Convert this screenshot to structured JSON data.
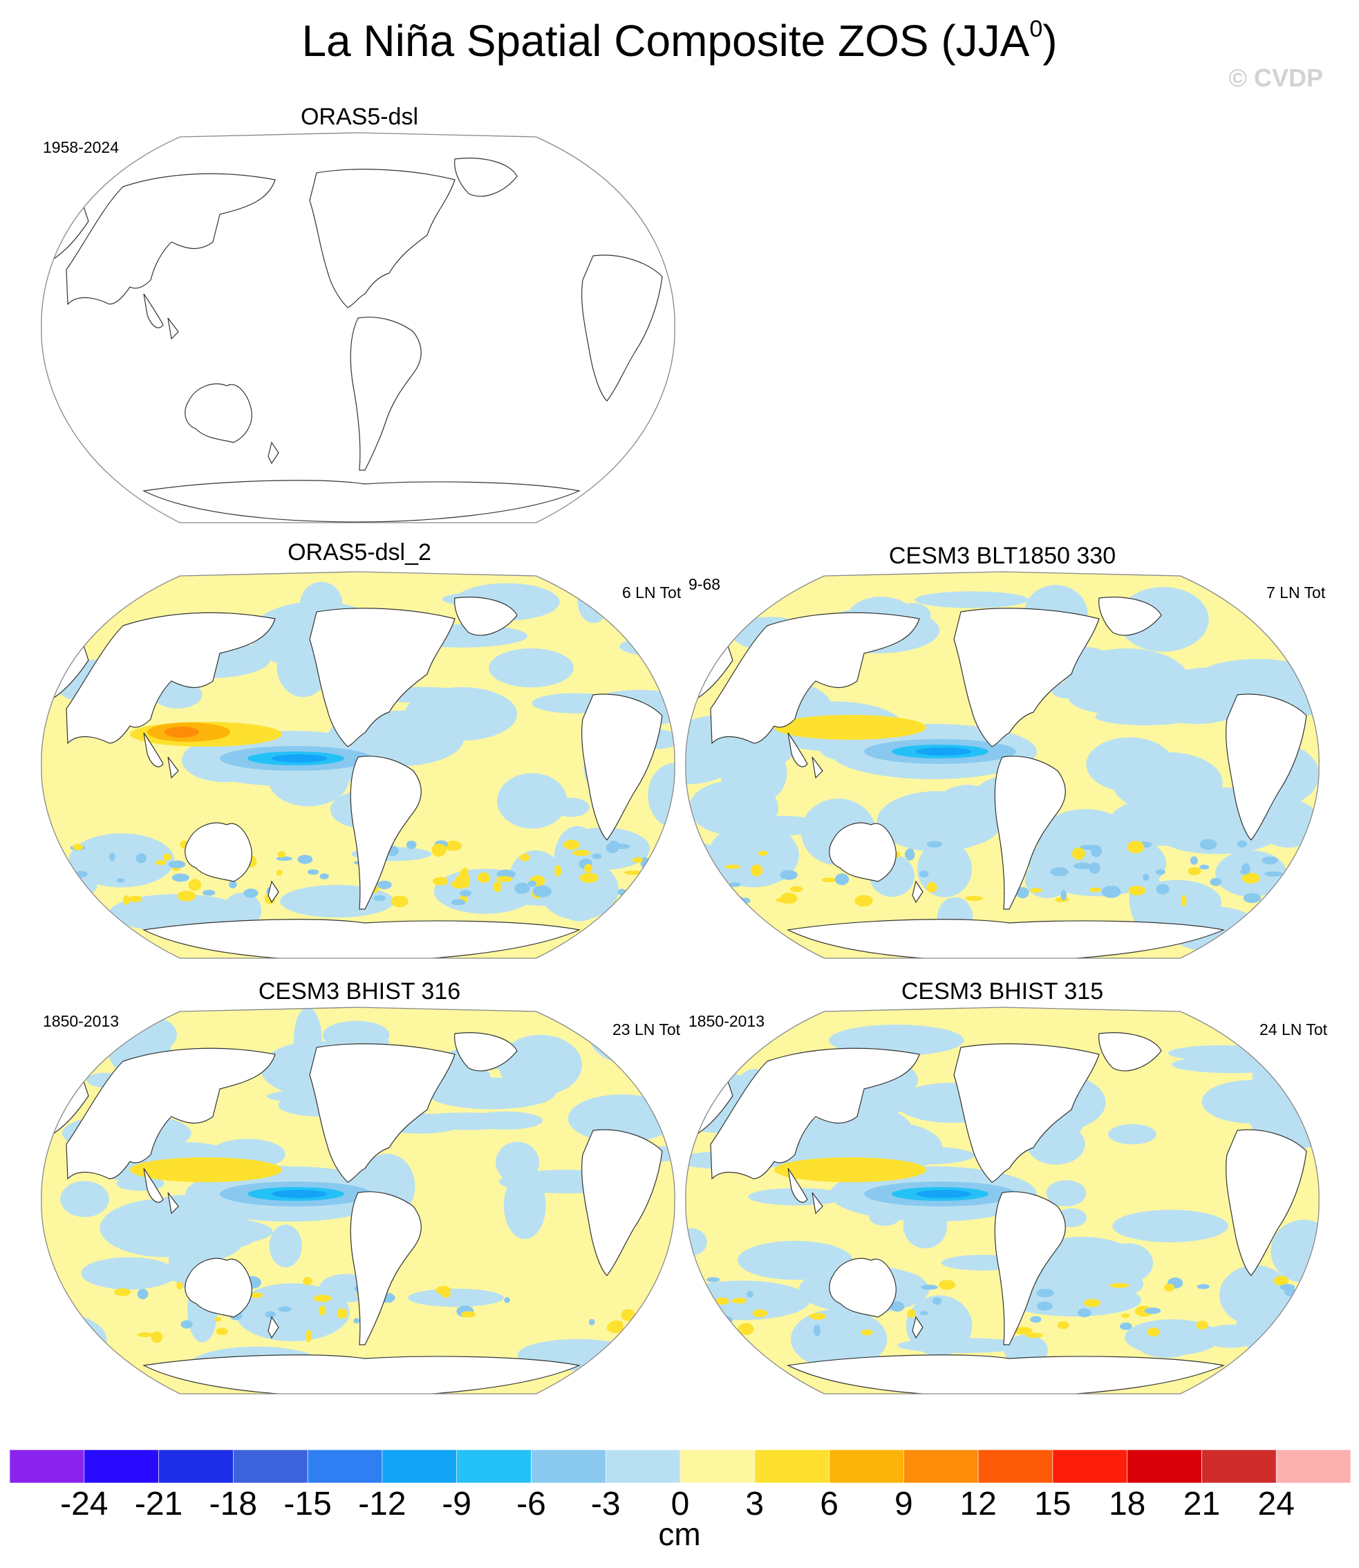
{
  "title": "La Niña Spatial Composite ZOS (JJA",
  "title_sup": "0",
  "title_close": ")",
  "watermark": "© CVDP",
  "panels": [
    {
      "id": "p1",
      "title": "ORAS5-dsl",
      "left_label": "1958-2024",
      "right_label": "",
      "has_data": false
    },
    {
      "id": "p2",
      "title": "ORAS5-dsl_2",
      "left_label": "",
      "right_label": "6 LN Tot",
      "has_data": true
    },
    {
      "id": "p3",
      "title": "CESM3 BLT1850 330",
      "left_label": "9-68",
      "right_label": "7 LN Tot",
      "has_data": true
    },
    {
      "id": "p4",
      "title": "CESM3 BHIST 316",
      "left_label": "1850-2013",
      "right_label": "23 LN Tot",
      "has_data": true
    },
    {
      "id": "p5",
      "title": "CESM3 BHIST 315",
      "left_label": "1850-2013",
      "right_label": "24 LN Tot",
      "has_data": true
    }
  ],
  "chart_data": {
    "type": "heatmap",
    "projection": "robinson",
    "variable": "ZOS",
    "season": "JJA",
    "units": "cm",
    "colorbar": {
      "levels": [
        -24,
        -21,
        -18,
        -15,
        -12,
        -9,
        -6,
        -3,
        0,
        3,
        6,
        9,
        12,
        15,
        18,
        21,
        24
      ],
      "colors": [
        "#8a23ee",
        "#2a0bff",
        "#1f2ee8",
        "#3c63dc",
        "#2f7ff2",
        "#14a4f7",
        "#24c1f6",
        "#89c9ef",
        "#b9e0f2",
        "#fdf7a0",
        "#fde12e",
        "#fdb40a",
        "#fd8c08",
        "#fd5a08",
        "#ff1e0a",
        "#d9000a",
        "#d02c2c",
        "#fdb0b0"
      ]
    },
    "panels_summary": [
      {
        "panel": "ORAS5-dsl",
        "min_cm": 0,
        "max_cm": 0,
        "note": "no data drawn"
      },
      {
        "panel": "ORAS5-dsl_2",
        "eq_pacific_min_cm": -9,
        "w_pacific_max_cm": 12
      },
      {
        "panel": "CESM3 BLT1850 330",
        "eq_pacific_min_cm": -9,
        "w_pacific_max_cm": 6
      },
      {
        "panel": "CESM3 BHIST 316",
        "eq_pacific_min_cm": -9,
        "w_pacific_max_cm": 6
      },
      {
        "panel": "CESM3 BHIST 315",
        "eq_pacific_min_cm": -9,
        "w_pacific_max_cm": 6
      }
    ]
  }
}
